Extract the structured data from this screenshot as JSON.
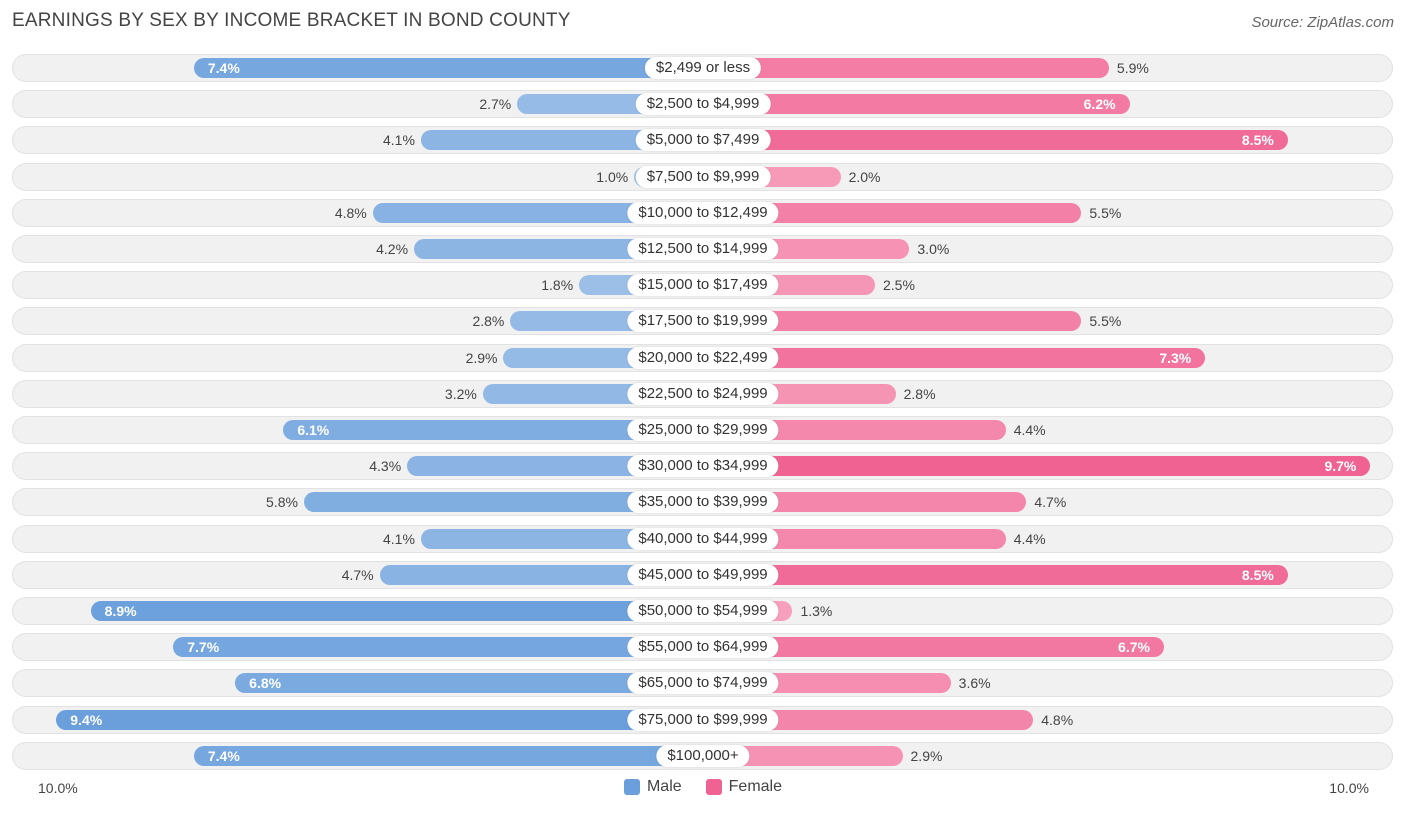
{
  "header": {
    "title": "EARNINGS BY SEX BY INCOME BRACKET IN BOND COUNTY",
    "source": "Source: ZipAtlas.com"
  },
  "colors": {
    "male_strong": "#6a9fdc",
    "male_light": "#a7c6ea",
    "female_strong": "#f06292",
    "female_light": "#f8a8c2"
  },
  "chart_data": {
    "type": "bar",
    "orientation": "horizontal-diverging",
    "title": "EARNINGS BY SEX BY INCOME BRACKET IN BOND COUNTY",
    "categories": [
      "$2,499 or less",
      "$2,500 to $4,999",
      "$5,000 to $7,499",
      "$7,500 to $9,999",
      "$10,000 to $12,499",
      "$12,500 to $14,999",
      "$15,000 to $17,499",
      "$17,500 to $19,999",
      "$20,000 to $22,499",
      "$22,500 to $24,999",
      "$25,000 to $29,999",
      "$30,000 to $34,999",
      "$35,000 to $39,999",
      "$40,000 to $44,999",
      "$45,000 to $49,999",
      "$50,000 to $54,999",
      "$55,000 to $64,999",
      "$65,000 to $74,999",
      "$75,000 to $99,999",
      "$100,000+"
    ],
    "series": [
      {
        "name": "Male",
        "values": [
          7.4,
          2.7,
          4.1,
          1.0,
          4.8,
          4.2,
          1.8,
          2.8,
          2.9,
          3.2,
          6.1,
          4.3,
          5.8,
          4.1,
          4.7,
          8.9,
          7.7,
          6.8,
          9.4,
          7.4
        ]
      },
      {
        "name": "Female",
        "values": [
          5.9,
          6.2,
          8.5,
          2.0,
          5.5,
          3.0,
          2.5,
          5.5,
          7.3,
          2.8,
          4.4,
          9.7,
          4.7,
          4.4,
          8.5,
          1.3,
          6.7,
          3.6,
          4.8,
          2.9
        ]
      }
    ],
    "value_labels": {
      "male": [
        "7.4%",
        "2.7%",
        "4.1%",
        "1.0%",
        "4.8%",
        "4.2%",
        "1.8%",
        "2.8%",
        "2.9%",
        "3.2%",
        "6.1%",
        "4.3%",
        "5.8%",
        "4.1%",
        "4.7%",
        "8.9%",
        "7.7%",
        "6.8%",
        "9.4%",
        "7.4%"
      ],
      "female": [
        "5.9%",
        "6.2%",
        "8.5%",
        "2.0%",
        "5.5%",
        "3.0%",
        "2.5%",
        "5.5%",
        "7.3%",
        "2.8%",
        "4.4%",
        "9.7%",
        "4.7%",
        "4.4%",
        "8.5%",
        "1.3%",
        "6.7%",
        "3.6%",
        "4.8%",
        "2.9%"
      ]
    },
    "axis": {
      "left_label": "10.0%",
      "right_label": "10.0%",
      "max": 10.0
    },
    "legend": {
      "position": "bottom-center",
      "entries": [
        "Male",
        "Female"
      ]
    }
  }
}
